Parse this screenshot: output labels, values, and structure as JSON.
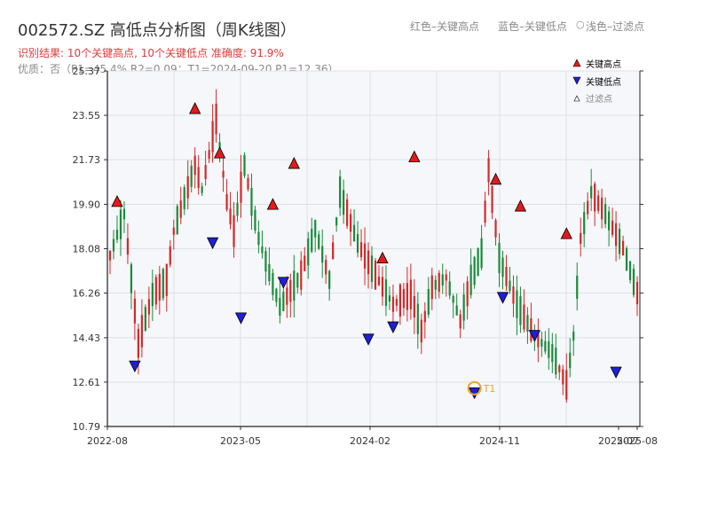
{
  "header": {
    "title": "002572.SZ 高低点分析图（周K线图）",
    "hint_red": "红色–关键高点",
    "hint_blue": "蓝色–关键低点",
    "hint_gray": "浅色–过滤点",
    "result_line": "识别结果: 10个关键高点, 10个关键低点   准确度: 91.9%",
    "quality_line": "优质：否（P1=45.4%  R2=0.09；T1=2024-09-20 P1=12.36）"
  },
  "colors": {
    "up": "#d62728",
    "down": "#1a8a3a",
    "high_marker": "#e31a1c",
    "low_marker": "#1f1fd6",
    "t1_marker": "#f0a030",
    "plot_bg": "#f5f7fa"
  },
  "chart_data": {
    "type": "candlestick",
    "ylim": [
      10.79,
      25.37
    ],
    "yticks": [
      "10.79",
      "12.61",
      "14.43",
      "16.26",
      "18.08",
      "19.90",
      "21.73",
      "23.55",
      "25.37"
    ],
    "xticks": [
      "2022-08",
      "2023-05",
      "2024-02",
      "2024-11",
      "2025-07",
      "2025-08"
    ],
    "bars": 150,
    "legend": {
      "high": "关键高点",
      "low": "关键低点",
      "filtered": "过滤点"
    },
    "anchors": [
      [
        0,
        17.8
      ],
      [
        4,
        19.5
      ],
      [
        8,
        14.2
      ],
      [
        12,
        16.2
      ],
      [
        16,
        16.8
      ],
      [
        18,
        18.8
      ],
      [
        24,
        21.5
      ],
      [
        26,
        20.5
      ],
      [
        30,
        23.4
      ],
      [
        33,
        20.0
      ],
      [
        35,
        18.8
      ],
      [
        38,
        21.5
      ],
      [
        42,
        18.5
      ],
      [
        48,
        15.7
      ],
      [
        54,
        17.0
      ],
      [
        58,
        18.9
      ],
      [
        62,
        16.8
      ],
      [
        65,
        20.4
      ],
      [
        70,
        18.3
      ],
      [
        75,
        17.0
      ],
      [
        80,
        15.8
      ],
      [
        85,
        16.2
      ],
      [
        88,
        14.7
      ],
      [
        91,
        16.5
      ],
      [
        95,
        16.9
      ],
      [
        99,
        15.1
      ],
      [
        102,
        16.8
      ],
      [
        105,
        17.9
      ],
      [
        107,
        21.3
      ],
      [
        110,
        17.7
      ],
      [
        115,
        15.8
      ],
      [
        120,
        14.5
      ],
      [
        125,
        13.8
      ],
      [
        129,
        12.5
      ],
      [
        131,
        14.5
      ],
      [
        133,
        18.5
      ],
      [
        136,
        20.4
      ],
      [
        140,
        19.5
      ],
      [
        145,
        18.1
      ],
      [
        150,
        15.8
      ]
    ],
    "highs": [
      {
        "i": 2,
        "v": 19.74
      },
      {
        "i": 24,
        "v": 23.55
      },
      {
        "i": 31,
        "v": 21.73
      },
      {
        "i": 46,
        "v": 19.62
      },
      {
        "i": 52,
        "v": 21.3
      },
      {
        "i": 77,
        "v": 17.42
      },
      {
        "i": 86,
        "v": 21.57
      },
      {
        "i": 109,
        "v": 20.65
      },
      {
        "i": 116,
        "v": 19.55
      },
      {
        "i": 129,
        "v": 18.42
      }
    ],
    "lows": [
      {
        "i": 7,
        "v": 13.55
      },
      {
        "i": 29,
        "v": 18.6
      },
      {
        "i": 37,
        "v": 15.52
      },
      {
        "i": 49,
        "v": 16.98
      },
      {
        "i": 73,
        "v": 14.65
      },
      {
        "i": 80,
        "v": 15.15
      },
      {
        "i": 103,
        "v": 12.45
      },
      {
        "i": 111,
        "v": 16.36
      },
      {
        "i": 120,
        "v": 14.8
      },
      {
        "i": 143,
        "v": 13.3
      }
    ],
    "t1": {
      "label": "T1",
      "i": 103,
      "v": 12.36
    }
  }
}
